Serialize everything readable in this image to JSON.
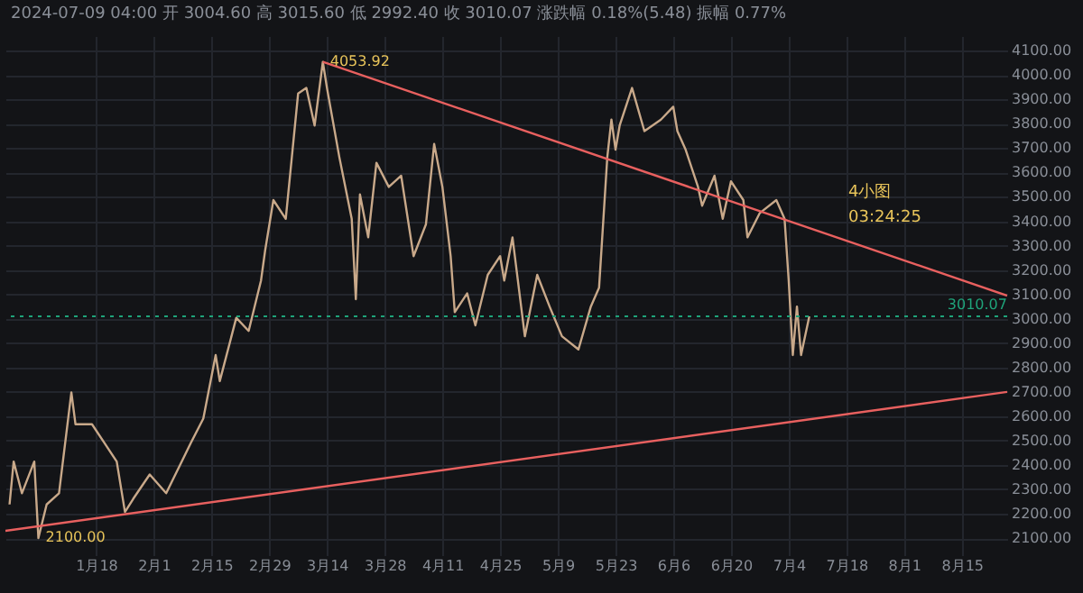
{
  "chart_data": {
    "type": "line",
    "subtitle": "2024-07-09 04:00 开 3004.60 高 3015.60 低 2992.40 收 3010.07 涨跌幅 0.18%(5.48) 振幅 0.77%",
    "xlim": [
      "2023-12-27",
      "2024-08-26"
    ],
    "ylim": [
      2030,
      4160
    ],
    "xticks": [
      {
        "value": "2024-01-18",
        "label": "1月18"
      },
      {
        "value": "2024-02-01",
        "label": "2月1"
      },
      {
        "value": "2024-02-15",
        "label": "2月15"
      },
      {
        "value": "2024-02-29",
        "label": "2月29"
      },
      {
        "value": "2024-03-14",
        "label": "3月14"
      },
      {
        "value": "2024-03-28",
        "label": "3月28"
      },
      {
        "value": "2024-04-11",
        "label": "4月11"
      },
      {
        "value": "2024-04-25",
        "label": "4月25"
      },
      {
        "value": "2024-05-09",
        "label": "5月9"
      },
      {
        "value": "2024-05-23",
        "label": "5月23"
      },
      {
        "value": "2024-06-06",
        "label": "6月6"
      },
      {
        "value": "2024-06-20",
        "label": "6月20"
      },
      {
        "value": "2024-07-04",
        "label": "7月4"
      },
      {
        "value": "2024-07-18",
        "label": "7月18"
      },
      {
        "value": "2024-08-01",
        "label": "8月1"
      },
      {
        "value": "2024-08-15",
        "label": "8月15"
      }
    ],
    "yticks": [
      {
        "value": 2100,
        "label": "2100.00"
      },
      {
        "value": 2200,
        "label": "2200.00"
      },
      {
        "value": 2300,
        "label": "2300.00"
      },
      {
        "value": 2400,
        "label": "2400.00"
      },
      {
        "value": 2500,
        "label": "2500.00"
      },
      {
        "value": 2600,
        "label": "2600.00"
      },
      {
        "value": 2700,
        "label": "2700.00"
      },
      {
        "value": 2800,
        "label": "2800.00"
      },
      {
        "value": 2900,
        "label": "2900.00"
      },
      {
        "value": 3000,
        "label": "3000.00"
      },
      {
        "value": 3100,
        "label": "3100.00"
      },
      {
        "value": 3200,
        "label": "3200.00"
      },
      {
        "value": 3300,
        "label": "3300.00"
      },
      {
        "value": 3400,
        "label": "3400.00"
      },
      {
        "value": 3500,
        "label": "3500.00"
      },
      {
        "value": 3600,
        "label": "3600.00"
      },
      {
        "value": 3700,
        "label": "3700.00"
      },
      {
        "value": 3800,
        "label": "3800.00"
      },
      {
        "value": 3900,
        "label": "3900.00"
      },
      {
        "value": 4000,
        "label": "4000.00"
      },
      {
        "value": 4100,
        "label": "4100.00"
      }
    ],
    "grid": true,
    "series": [
      {
        "color": "#c9a98a",
        "x": [
          "2023-12-28",
          "2023-12-29",
          "2023-12-31",
          "2024-01-03",
          "2024-01-04",
          "2024-01-06",
          "2024-01-09",
          "2024-01-12",
          "2024-01-13",
          "2024-01-17",
          "2024-01-20",
          "2024-01-23",
          "2024-01-25",
          "2024-01-27",
          "2024-01-31",
          "2024-02-04",
          "2024-02-10",
          "2024-02-13",
          "2024-02-16",
          "2024-02-17",
          "2024-02-21",
          "2024-02-24",
          "2024-02-27",
          "2024-02-28",
          "2024-03-01",
          "2024-03-04",
          "2024-03-07",
          "2024-03-09",
          "2024-03-11",
          "2024-03-13",
          "2024-03-14",
          "2024-03-17",
          "2024-03-20",
          "2024-03-21",
          "2024-03-22",
          "2024-03-24",
          "2024-03-26",
          "2024-03-29",
          "2024-04-01",
          "2024-04-04",
          "2024-04-07",
          "2024-04-09",
          "2024-04-11",
          "2024-04-13",
          "2024-04-14",
          "2024-04-17",
          "2024-04-19",
          "2024-04-22",
          "2024-04-25",
          "2024-04-26",
          "2024-04-28",
          "2024-05-01",
          "2024-05-04",
          "2024-05-07",
          "2024-05-10",
          "2024-05-14",
          "2024-05-17",
          "2024-05-19",
          "2024-05-21",
          "2024-05-22",
          "2024-05-23",
          "2024-05-24",
          "2024-05-27",
          "2024-05-30",
          "2024-06-03",
          "2024-06-06",
          "2024-06-07",
          "2024-06-09",
          "2024-06-12",
          "2024-06-13",
          "2024-06-16",
          "2024-06-18",
          "2024-06-20",
          "2024-06-23",
          "2024-06-24",
          "2024-06-27",
          "2024-07-01",
          "2024-07-03",
          "2024-07-04",
          "2024-07-05",
          "2024-07-06",
          "2024-07-07",
          "2024-07-09"
        ],
        "values": [
          2238,
          2414,
          2284,
          2414,
          2100,
          2238,
          2284,
          2698,
          2567,
          2567,
          2491,
          2414,
          2207,
          2261,
          2361,
          2284,
          2491,
          2590,
          2851,
          2744,
          3004,
          2950,
          3157,
          3280,
          3487,
          3410,
          3924,
          3947,
          3793,
          4053.92,
          3947,
          3663,
          3410,
          3080,
          3510,
          3334,
          3640,
          3541,
          3587,
          3257,
          3387,
          3717,
          3541,
          3257,
          3027,
          3104,
          2973,
          3180,
          3257,
          3157,
          3334,
          2928,
          3180,
          3050,
          2928,
          2874,
          3050,
          3127,
          3663,
          3817,
          3694,
          3793,
          3947,
          3770,
          3817,
          3870,
          3770,
          3694,
          3541,
          3464,
          3587,
          3410,
          3564,
          3487,
          3334,
          3434,
          3487,
          3410,
          3157,
          2851,
          3050,
          2851,
          3010.07
        ]
      },
      {
        "type": "line",
        "color": "#e8605f",
        "x": [
          "2024-03-13",
          "2024-08-26"
        ],
        "values": [
          4053.92,
          3095
        ]
      },
      {
        "type": "line",
        "color": "#e8605f",
        "x": [
          "2023-12-27",
          "2024-08-26"
        ],
        "values": [
          2130,
          2700
        ]
      }
    ],
    "ref_lines": [
      {
        "axis": "y",
        "value": 3010.07,
        "label": "3010.07",
        "color": "#1fa37a",
        "line_style": "dotted"
      }
    ],
    "annotations": [
      {
        "text": "4053.92",
        "x": "2024-03-13",
        "y": 4053.92
      },
      {
        "text": "2100.00",
        "x": "2024-01-04",
        "y": 2100
      },
      "4小图",
      "03:24:25"
    ]
  }
}
